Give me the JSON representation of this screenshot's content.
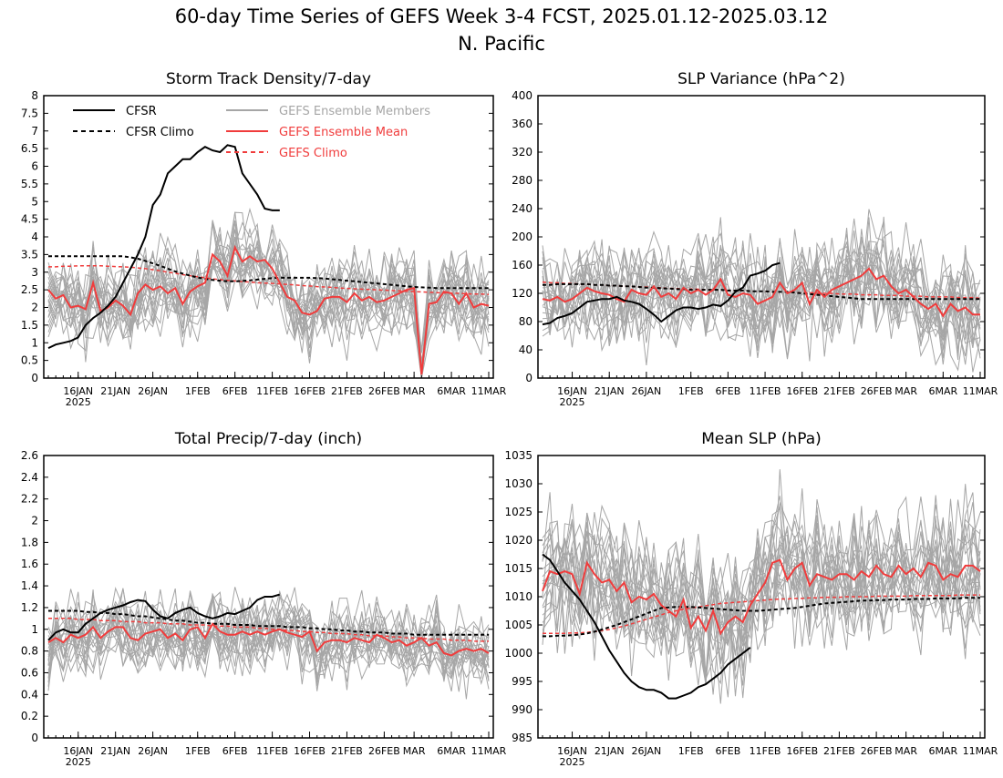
{
  "page": {
    "title_line1": "60-day Time Series of GEFS Week 3-4 FCST, 2025.01.12-2025.03.12",
    "title_line2": "N. Pacific"
  },
  "colors": {
    "cfsr": "#000000",
    "members": "#a6a6a6",
    "ens_mean": "#f03c3c",
    "gefs_climo": "#f03c3c"
  },
  "legend": {
    "cfsr": "CFSR",
    "cfsr_climo": "CFSR Climo",
    "members": "GEFS Ensemble Members",
    "ens_mean": "GEFS Ensemble Mean",
    "gefs_climo": "GEFS Climo"
  },
  "x_axis": {
    "n_days": 60,
    "tick_labels": [
      "16JAN",
      "21JAN",
      "26JAN",
      "1FEB",
      "6FEB",
      "11FEB",
      "16FEB",
      "21FEB",
      "26FEB",
      "MAR",
      "6MAR",
      "11MAR"
    ],
    "tick_days": [
      4,
      9,
      14,
      20,
      25,
      30,
      35,
      40,
      45,
      49,
      54,
      59
    ],
    "year_label": "2025"
  },
  "chart_data": [
    {
      "type": "line",
      "title": "Storm Track Density/7-day",
      "ylim": [
        0,
        8
      ],
      "yticks": [
        "0",
        "0.5",
        "1",
        "1.5",
        "2",
        "2.5",
        "3",
        "3.5",
        "4",
        "4.5",
        "5",
        "5.5",
        "6",
        "6.5",
        "7",
        "7.5",
        "8"
      ],
      "legend_position": "top-left",
      "cfsr": [
        0.85,
        0.95,
        1.0,
        1.05,
        1.15,
        1.5,
        1.7,
        1.85,
        2.05,
        2.3,
        2.7,
        3.1,
        3.5,
        4.0,
        4.9,
        5.2,
        5.8,
        6.0,
        6.2,
        6.2,
        6.4,
        6.55,
        6.45,
        6.4,
        6.6,
        6.55,
        5.8,
        5.5,
        5.2,
        4.8,
        4.75,
        4.75
      ],
      "cfsr_climo": [
        3.45,
        3.45,
        3.45,
        3.45,
        3.45,
        3.45,
        3.45,
        3.45,
        3.45,
        3.45,
        3.45,
        3.42,
        3.38,
        3.32,
        3.25,
        3.18,
        3.1,
        3.02,
        2.96,
        2.9,
        2.85,
        2.81,
        2.78,
        2.76,
        2.74,
        2.74,
        2.75,
        2.77,
        2.79,
        2.81,
        2.83,
        2.84,
        2.84,
        2.84,
        2.84,
        2.84,
        2.83,
        2.82,
        2.8,
        2.78,
        2.76,
        2.74,
        2.72,
        2.7,
        2.68,
        2.66,
        2.64,
        2.62,
        2.6,
        2.58,
        2.57,
        2.56,
        2.55,
        2.55,
        2.55,
        2.55,
        2.55,
        2.55,
        2.55,
        2.55
      ],
      "gefs_climo": [
        3.15,
        3.15,
        3.17,
        3.17,
        3.18,
        3.18,
        3.18,
        3.18,
        3.17,
        3.16,
        3.15,
        3.14,
        3.12,
        3.1,
        3.07,
        3.04,
        3.0,
        2.97,
        2.93,
        2.9,
        2.87,
        2.84,
        2.81,
        2.79,
        2.77,
        2.75,
        2.73,
        2.72,
        2.7,
        2.69,
        2.68,
        2.67,
        2.65,
        2.64,
        2.62,
        2.61,
        2.59,
        2.58,
        2.57,
        2.55,
        2.54,
        2.53,
        2.52,
        2.51,
        2.5,
        2.49,
        2.48,
        2.47,
        2.46,
        2.45,
        2.44,
        2.43,
        2.42,
        2.41,
        2.41,
        2.4,
        2.39,
        2.38,
        2.38,
        2.37
      ],
      "ens_mean": [
        2.5,
        2.25,
        2.35,
        2.0,
        2.05,
        1.95,
        2.7,
        1.9,
        2.0,
        2.2,
        2.05,
        1.8,
        2.4,
        2.65,
        2.5,
        2.6,
        2.4,
        2.55,
        2.1,
        2.45,
        2.6,
        2.7,
        3.5,
        3.3,
        2.9,
        3.7,
        3.3,
        3.45,
        3.3,
        3.35,
        3.1,
        2.7,
        2.3,
        2.2,
        1.85,
        1.8,
        1.9,
        2.25,
        2.3,
        2.3,
        2.15,
        2.4,
        2.2,
        2.3,
        2.15,
        2.2,
        2.3,
        2.4,
        2.5,
        2.55,
        0.1,
        2.1,
        2.15,
        2.45,
        2.4,
        2.1,
        2.4,
        2.0,
        2.1,
        2.05
      ],
      "members_base": "ens_mean",
      "members_spread": 1.15
    },
    {
      "type": "line",
      "title": "SLP Variance (hPa^2)",
      "ylim": [
        0,
        400
      ],
      "yticks": [
        "0",
        "40",
        "80",
        "120",
        "160",
        "200",
        "240",
        "280",
        "320",
        "360",
        "400"
      ],
      "cfsr": [
        76,
        78,
        85,
        88,
        92,
        100,
        108,
        110,
        112,
        112,
        115,
        110,
        108,
        105,
        98,
        90,
        80,
        88,
        96,
        100,
        100,
        98,
        100,
        104,
        102,
        110,
        122,
        128,
        145,
        148,
        152,
        160,
        163
      ],
      "cfsr_climo": [
        132,
        132,
        133,
        133,
        133,
        133,
        133,
        132,
        132,
        131,
        131,
        130,
        130,
        129,
        128,
        128,
        127,
        127,
        126,
        126,
        125,
        125,
        125,
        125,
        125,
        124,
        124,
        124,
        123,
        123,
        123,
        122,
        122,
        122,
        121,
        120,
        119,
        118,
        117,
        116,
        115,
        114,
        113,
        112,
        112,
        112,
        112,
        112,
        112,
        112,
        112,
        112,
        112,
        112,
        112,
        112,
        112,
        112,
        112,
        112
      ],
      "gefs_climo": [
        136,
        135,
        135,
        134,
        134,
        133,
        133,
        132,
        132,
        131,
        131,
        130,
        130,
        129,
        129,
        128,
        128,
        127,
        127,
        126,
        126,
        126,
        125,
        125,
        125,
        124,
        124,
        124,
        123,
        123,
        123,
        122,
        122,
        122,
        121,
        121,
        121,
        120,
        120,
        120,
        119,
        119,
        119,
        118,
        118,
        118,
        117,
        117,
        117,
        116,
        116,
        116,
        115,
        115,
        115,
        115,
        114,
        114,
        114,
        113
      ],
      "ens_mean": [
        112,
        110,
        115,
        108,
        112,
        120,
        128,
        123,
        120,
        118,
        112,
        108,
        125,
        120,
        118,
        130,
        115,
        120,
        112,
        128,
        120,
        125,
        118,
        125,
        140,
        118,
        115,
        120,
        118,
        105,
        110,
        115,
        135,
        120,
        125,
        135,
        105,
        125,
        115,
        125,
        130,
        135,
        140,
        145,
        155,
        140,
        145,
        130,
        120,
        125,
        115,
        105,
        98,
        105,
        88,
        105,
        95,
        100,
        90,
        90
      ],
      "members_base": "ens_mean",
      "members_spread": 70
    },
    {
      "type": "line",
      "title": "Total Precip/7-day (inch)",
      "ylim": [
        0,
        2.6
      ],
      "yticks": [
        "0",
        "0.2",
        "0.4",
        "0.6",
        "0.8",
        "1",
        "1.2",
        "1.4",
        "1.6",
        "1.8",
        "2",
        "2.2",
        "2.4",
        "2.6"
      ],
      "cfsr": [
        0.9,
        0.97,
        1.0,
        0.97,
        0.97,
        1.05,
        1.1,
        1.15,
        1.18,
        1.2,
        1.22,
        1.25,
        1.27,
        1.26,
        1.18,
        1.12,
        1.1,
        1.15,
        1.18,
        1.2,
        1.15,
        1.12,
        1.1,
        1.12,
        1.15,
        1.14,
        1.17,
        1.2,
        1.27,
        1.3,
        1.3,
        1.32
      ],
      "cfsr_climo": [
        1.17,
        1.17,
        1.17,
        1.17,
        1.17,
        1.16,
        1.16,
        1.15,
        1.15,
        1.14,
        1.14,
        1.13,
        1.12,
        1.12,
        1.11,
        1.1,
        1.09,
        1.08,
        1.08,
        1.07,
        1.06,
        1.06,
        1.05,
        1.05,
        1.05,
        1.04,
        1.04,
        1.04,
        1.03,
        1.03,
        1.03,
        1.03,
        1.02,
        1.02,
        1.02,
        1.01,
        1.01,
        1.0,
        1.0,
        0.99,
        0.99,
        0.98,
        0.98,
        0.97,
        0.97,
        0.97,
        0.96,
        0.96,
        0.96,
        0.95,
        0.95,
        0.95,
        0.95,
        0.95,
        0.95,
        0.95,
        0.95,
        0.95,
        0.95,
        0.95
      ],
      "gefs_climo": [
        1.1,
        1.1,
        1.1,
        1.1,
        1.09,
        1.09,
        1.09,
        1.08,
        1.08,
        1.08,
        1.07,
        1.07,
        1.07,
        1.06,
        1.06,
        1.06,
        1.05,
        1.05,
        1.05,
        1.04,
        1.04,
        1.04,
        1.03,
        1.03,
        1.03,
        1.02,
        1.02,
        1.02,
        1.01,
        1.01,
        1.0,
        1.0,
        0.99,
        0.99,
        0.98,
        0.98,
        0.97,
        0.97,
        0.96,
        0.96,
        0.96,
        0.95,
        0.95,
        0.94,
        0.94,
        0.94,
        0.93,
        0.93,
        0.92,
        0.92,
        0.92,
        0.91,
        0.91,
        0.91,
        0.9,
        0.9,
        0.9,
        0.89,
        0.89,
        0.89
      ],
      "ens_mean": [
        0.88,
        0.92,
        0.88,
        0.95,
        0.92,
        0.95,
        1.02,
        0.92,
        0.98,
        1.02,
        1.02,
        0.92,
        0.9,
        0.96,
        0.98,
        1.0,
        0.92,
        0.96,
        0.9,
        1.0,
        1.02,
        0.92,
        1.05,
        0.98,
        0.95,
        0.95,
        0.98,
        0.95,
        0.98,
        0.95,
        0.98,
        1.0,
        0.97,
        0.95,
        0.93,
        0.98,
        0.8,
        0.88,
        0.9,
        0.9,
        0.88,
        0.92,
        0.9,
        0.88,
        0.95,
        0.92,
        0.88,
        0.9,
        0.85,
        0.88,
        0.92,
        0.85,
        0.88,
        0.78,
        0.76,
        0.8,
        0.82,
        0.8,
        0.82,
        0.78
      ],
      "members_base": "ens_mean",
      "members_spread": 0.32
    },
    {
      "type": "line",
      "title": "Mean SLP (hPa)",
      "ylim": [
        985,
        1035
      ],
      "yticks": [
        "985",
        "990",
        "995",
        "1000",
        "1005",
        "1010",
        "1015",
        "1020",
        "1025",
        "1030",
        "1035"
      ],
      "cfsr": [
        1017.5,
        1016.5,
        1014.5,
        1012.5,
        1011.0,
        1009.5,
        1007.5,
        1005.5,
        1003.0,
        1000.5,
        998.5,
        996.5,
        995.0,
        994.0,
        993.5,
        993.5,
        993.0,
        992.0,
        992.0,
        992.5,
        993.0,
        994.0,
        994.5,
        995.5,
        996.5,
        998.0,
        999.0,
        1000.0,
        1001.0
      ],
      "cfsr_climo": [
        1003.0,
        1003.0,
        1003.1,
        1003.1,
        1003.2,
        1003.3,
        1003.5,
        1003.8,
        1004.2,
        1004.6,
        1005.0,
        1005.5,
        1006.0,
        1006.5,
        1007.0,
        1007.5,
        1008.0,
        1008.1,
        1008.2,
        1008.2,
        1008.2,
        1008.1,
        1008.0,
        1007.9,
        1007.8,
        1007.7,
        1007.6,
        1007.5,
        1007.5,
        1007.5,
        1007.6,
        1007.7,
        1007.8,
        1007.9,
        1008.0,
        1008.2,
        1008.4,
        1008.6,
        1008.8,
        1008.9,
        1009.0,
        1009.1,
        1009.2,
        1009.3,
        1009.3,
        1009.4,
        1009.4,
        1009.5,
        1009.5,
        1009.5,
        1009.6,
        1009.6,
        1009.6,
        1009.7,
        1009.7,
        1009.7,
        1009.7,
        1009.8,
        1009.8,
        1009.8
      ],
      "gefs_climo": [
        1003.5,
        1003.5,
        1003.5,
        1003.5,
        1003.6,
        1003.6,
        1003.7,
        1003.8,
        1004.0,
        1004.2,
        1004.5,
        1004.8,
        1005.2,
        1005.6,
        1006.0,
        1006.4,
        1006.8,
        1007.2,
        1007.5,
        1007.8,
        1008.0,
        1008.2,
        1008.4,
        1008.6,
        1008.8,
        1008.9,
        1009.0,
        1009.1,
        1009.2,
        1009.3,
        1009.4,
        1009.5,
        1009.6,
        1009.6,
        1009.7,
        1009.7,
        1009.8,
        1009.8,
        1009.9,
        1009.9,
        1009.9,
        1010.0,
        1010.0,
        1010.0,
        1010.0,
        1010.1,
        1010.1,
        1010.1,
        1010.1,
        1010.1,
        1010.2,
        1010.2,
        1010.2,
        1010.2,
        1010.2,
        1010.2,
        1010.3,
        1010.3,
        1010.3,
        1010.3
      ],
      "ens_mean": [
        1011.0,
        1014.5,
        1014.0,
        1014.5,
        1014.0,
        1010.5,
        1016.0,
        1014.0,
        1012.5,
        1013.0,
        1011.0,
        1012.5,
        1009.0,
        1010.0,
        1009.5,
        1010.5,
        1008.5,
        1007.5,
        1006.5,
        1009.5,
        1004.5,
        1006.5,
        1004.0,
        1007.5,
        1003.5,
        1005.5,
        1006.5,
        1005.5,
        1008.5,
        1010.5,
        1012.5,
        1016.0,
        1016.5,
        1013.0,
        1015.0,
        1016.0,
        1012.0,
        1014.0,
        1013.5,
        1013.0,
        1014.0,
        1014.0,
        1013.0,
        1014.5,
        1013.5,
        1015.5,
        1014.0,
        1013.5,
        1015.5,
        1014.0,
        1015.0,
        1013.5,
        1016.0,
        1015.5,
        1013.0,
        1014.0,
        1013.5,
        1015.5,
        1015.5,
        1014.5
      ],
      "members_base": "ens_mean",
      "members_spread": 11
    }
  ]
}
